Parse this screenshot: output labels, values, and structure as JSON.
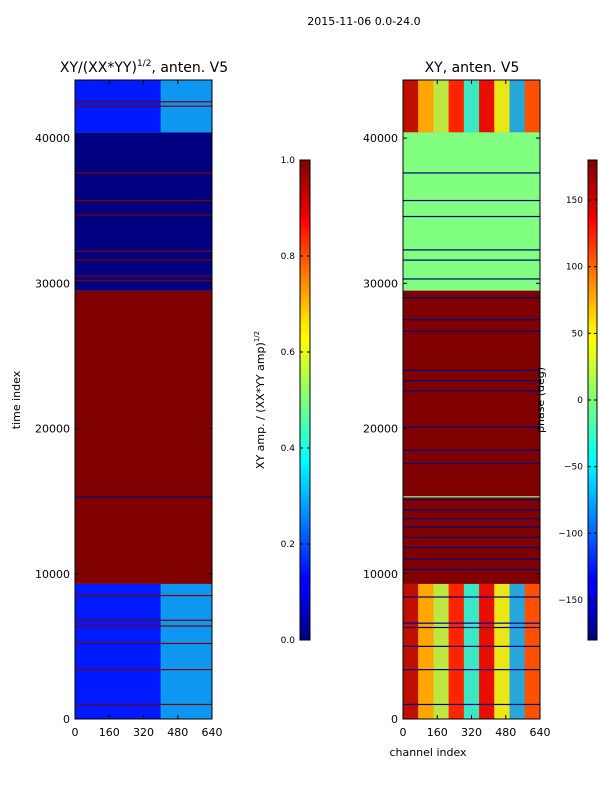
{
  "chart_data": [
    {
      "type": "heatmap",
      "suptitle": "2015-11-06 0.0-24.0",
      "title": "XY/(XX*YY)",
      "title_exponent": "1/2",
      "title_suffix": ", anten. V5",
      "xlabel": "",
      "ylabel": "time index",
      "xlim": [
        0,
        640
      ],
      "ylim": [
        0,
        44000
      ],
      "xticks": [
        0,
        160,
        320,
        480,
        640
      ],
      "yticks": [
        0,
        10000,
        20000,
        30000,
        40000
      ],
      "bands": [
        {
          "y0": 0,
          "y1": 9300,
          "value": 0.15,
          "active_x0": 400,
          "active_value": 0.4
        },
        {
          "y0": 9300,
          "y1": 29500,
          "value": 1.0
        },
        {
          "y0": 29500,
          "y1": 40400,
          "value": 0.0
        },
        {
          "y0": 40400,
          "y1": 44000,
          "value": 0.15,
          "active_x0": 400,
          "active_value": 0.4
        }
      ],
      "line_rows": [
        {
          "y": 15300,
          "value": 0.0
        },
        {
          "y": 30200,
          "value": 1.0
        },
        {
          "y": 30500,
          "value": 1.0
        },
        {
          "y": 31600,
          "value": 1.0
        },
        {
          "y": 32200,
          "value": 1.0
        },
        {
          "y": 34700,
          "value": 1.0
        },
        {
          "y": 35700,
          "value": 1.0
        },
        {
          "y": 37600,
          "value": 1.0
        },
        {
          "y": 42200,
          "value": 1.0
        },
        {
          "y": 42500,
          "value": 1.0
        },
        {
          "y": 8500,
          "value": 1.0
        },
        {
          "y": 6800,
          "value": 1.0
        },
        {
          "y": 6400,
          "value": 1.0
        },
        {
          "y": 5200,
          "value": 1.0
        },
        {
          "y": 3400,
          "value": 1.0
        },
        {
          "y": 1000,
          "value": 1.0
        }
      ],
      "colorbar": {
        "label": "XY amp. / (XX*YY amp)",
        "label_exponent": "1/2",
        "min": 0.0,
        "max": 1.0,
        "ticks": [
          "0.0",
          "0.2",
          "0.4",
          "0.6",
          "0.8",
          "1.0"
        ]
      }
    },
    {
      "type": "heatmap",
      "title": "XY, anten. V5",
      "xlabel": "channel index",
      "ylabel": "",
      "xlim": [
        0,
        640
      ],
      "ylim": [
        0,
        44000
      ],
      "xticks": [
        0,
        160,
        320,
        480,
        640
      ],
      "yticks": [
        0,
        10000,
        20000,
        30000,
        40000
      ],
      "bands": [
        {
          "y0": 0,
          "y1": 9300,
          "value": 100,
          "pattern": "stripes"
        },
        {
          "y0": 9300,
          "y1": 29500,
          "value": 180
        },
        {
          "y0": 29500,
          "y1": 40400,
          "value": 0
        },
        {
          "y0": 40400,
          "y1": 44000,
          "value": 100,
          "pattern": "stripes"
        }
      ],
      "line_rows": [
        {
          "y": 15300,
          "value": 0
        },
        {
          "y": 15100,
          "value": -180
        },
        {
          "y": 14400,
          "value": -180
        },
        {
          "y": 13800,
          "value": -180
        },
        {
          "y": 13200,
          "value": -180
        },
        {
          "y": 12500,
          "value": -180
        },
        {
          "y": 11800,
          "value": -180
        },
        {
          "y": 11000,
          "value": -180
        },
        {
          "y": 10300,
          "value": -180
        },
        {
          "y": 17600,
          "value": -180
        },
        {
          "y": 18500,
          "value": -180
        },
        {
          "y": 20100,
          "value": -180
        },
        {
          "y": 22600,
          "value": -180
        },
        {
          "y": 23300,
          "value": -180
        },
        {
          "y": 24000,
          "value": -180
        },
        {
          "y": 26700,
          "value": -180
        },
        {
          "y": 27500,
          "value": -180
        },
        {
          "y": 29000,
          "value": -180
        },
        {
          "y": 30300,
          "value": -180
        },
        {
          "y": 31600,
          "value": -180
        },
        {
          "y": 32300,
          "value": -180
        },
        {
          "y": 34600,
          "value": -180
        },
        {
          "y": 35700,
          "value": -180
        },
        {
          "y": 37600,
          "value": -180
        },
        {
          "y": 8400,
          "value": -180
        },
        {
          "y": 6600,
          "value": -180
        },
        {
          "y": 6300,
          "value": -180
        },
        {
          "y": 5000,
          "value": -180
        },
        {
          "y": 3400,
          "value": -180
        },
        {
          "y": 1000,
          "value": -180
        }
      ],
      "colorbar": {
        "label": "phase (deg)",
        "min": -180,
        "max": 180,
        "ticks": [
          "−150",
          "−100",
          "−50",
          "0",
          "50",
          "100",
          "150"
        ],
        "tick_values": [
          -150,
          -100,
          -50,
          0,
          50,
          100,
          150
        ]
      }
    }
  ]
}
